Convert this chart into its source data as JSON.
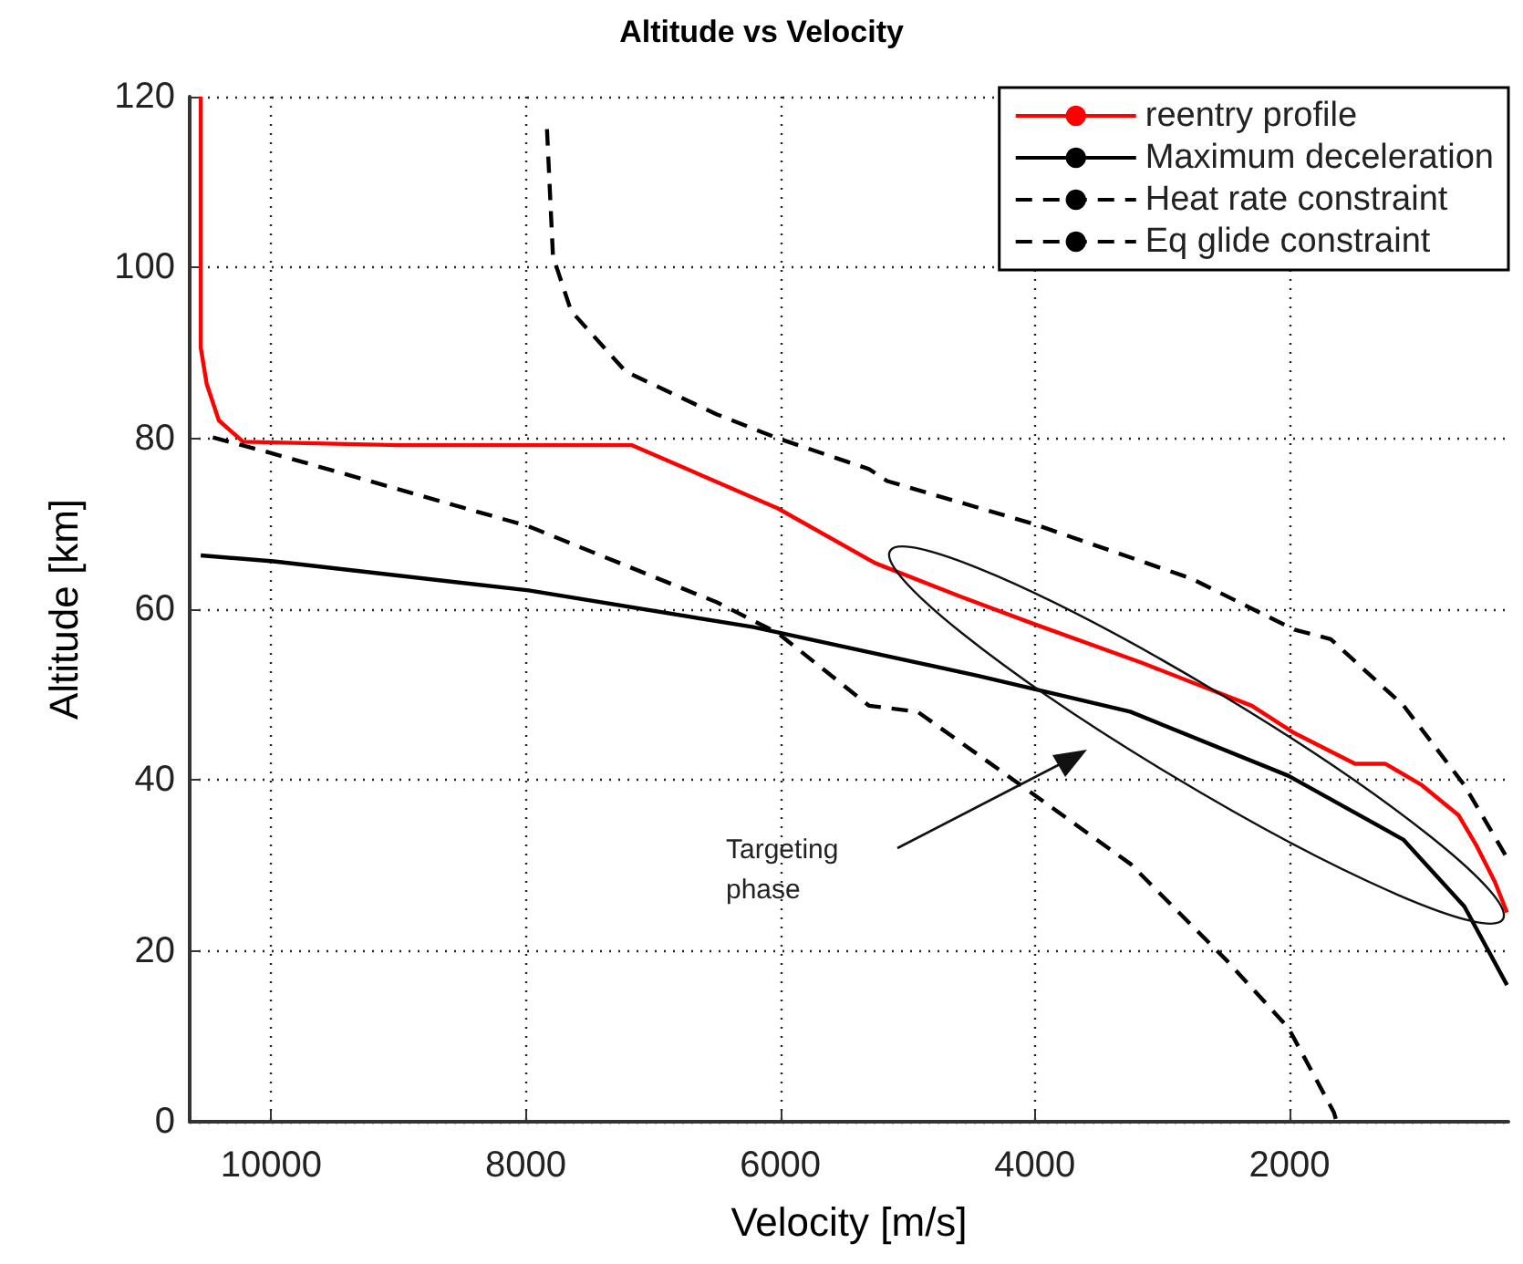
{
  "chart_data": {
    "type": "line",
    "title": "Altitude vs Velocity",
    "xlabel": "Velocity [m/s]",
    "ylabel": "Altitude [km]",
    "xlim": [
      10640,
      280
    ],
    "xticks": [
      10000,
      8000,
      6000,
      4000,
      2000
    ],
    "ylim": [
      0,
      120
    ],
    "yticks": [
      0,
      20,
      40,
      60,
      80,
      100,
      120
    ],
    "grid": true,
    "legend": "top right",
    "marker": "none",
    "annotations": [
      "Targeting\nphase"
    ],
    "series": [
      {
        "name": "reentry profile",
        "color": "#ff0000",
        "line_style": "solid",
        "x": [
          10553,
          10553,
          10507,
          10411,
          10220,
          9000,
          8000,
          7165,
          6019,
          5256,
          4587,
          4014,
          3155,
          2296,
          1962,
          1485,
          1246,
          960,
          673,
          530,
          387,
          291
        ],
        "values": [
          120,
          90.6,
          86.4,
          82.1,
          79.6,
          79.2,
          79.2,
          79.2,
          71.8,
          65.4,
          61.5,
          58.3,
          53.7,
          48.7,
          45.5,
          41.9,
          41.9,
          39.4,
          35.9,
          32.3,
          28.1,
          24.5
        ]
      },
      {
        "name": "Maximum deceleration",
        "color": "#000000",
        "line_style": "solid",
        "x": [
          10553,
          9981,
          7977,
          6211,
          4444,
          3251,
          2009,
          1103,
          626,
          291
        ],
        "values": [
          66.3,
          65.6,
          62.2,
          57.9,
          52.2,
          48.0,
          40.5,
          33.0,
          25.2,
          16.0
        ]
      },
      {
        "name": "Heat rate constraint",
        "color": "#000000",
        "line_style": "dashed",
        "x": [
          7833,
          7786,
          7643,
          7213,
          6497,
          6019,
          5303,
          5160,
          4014,
          2774,
          1962,
          1676,
          1103,
          626,
          291
        ],
        "values": [
          116.2,
          101.3,
          94.9,
          87.8,
          82.8,
          80.0,
          76.4,
          75.0,
          70.0,
          63.6,
          57.6,
          56.5,
          48.7,
          39.4,
          30.9
        ]
      },
      {
        "name": "Eq glide constraint",
        "color": "#000000",
        "line_style": "dashed",
        "x": [
          10458,
          9981,
          7977,
          6497,
          6019,
          5303,
          4922,
          4110,
          3251,
          2488,
          2009,
          1651,
          1630
        ],
        "values": [
          80.1,
          78.2,
          69.7,
          60.8,
          57.2,
          48.7,
          48.0,
          39.4,
          30.2,
          18.8,
          11.0,
          1.1,
          0
        ]
      }
    ]
  }
}
